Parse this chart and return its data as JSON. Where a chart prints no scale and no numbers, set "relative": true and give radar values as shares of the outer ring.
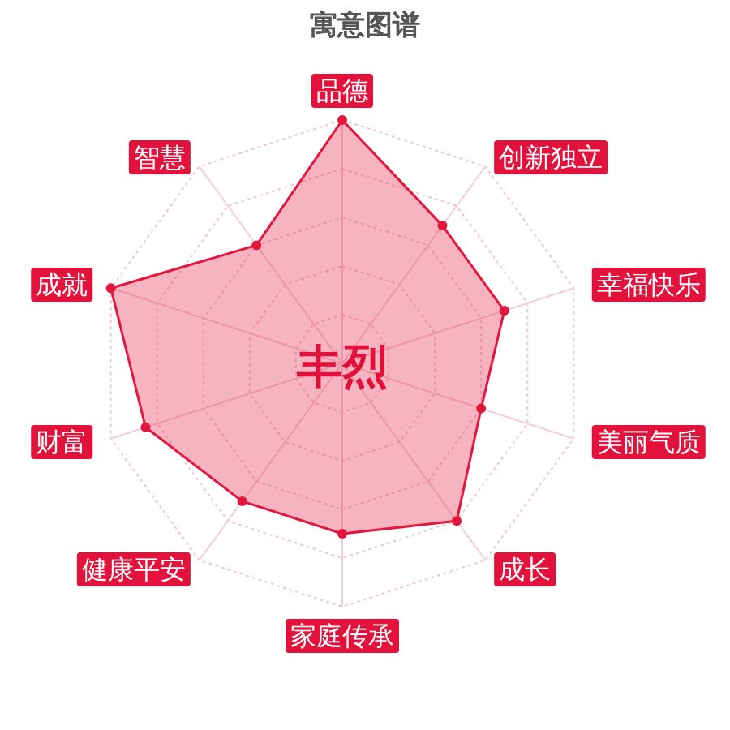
{
  "chart_data": {
    "type": "radar",
    "title": "寓意图谱",
    "categories": [
      "品德",
      "创新独立",
      "幸福快乐",
      "美丽气质",
      "成长",
      "家庭传承",
      "健康平安",
      "财富",
      "成就",
      "智慧"
    ],
    "relative": true,
    "series": [
      {
        "color": "#e3173e",
        "values": [
          1.0,
          0.7,
          0.7,
          0.6,
          0.8,
          0.7,
          0.7,
          0.85,
          1.0,
          0.6
        ]
      }
    ],
    "marker": "circle",
    "grid": true,
    "annotations": [
      "丰烈"
    ]
  }
}
